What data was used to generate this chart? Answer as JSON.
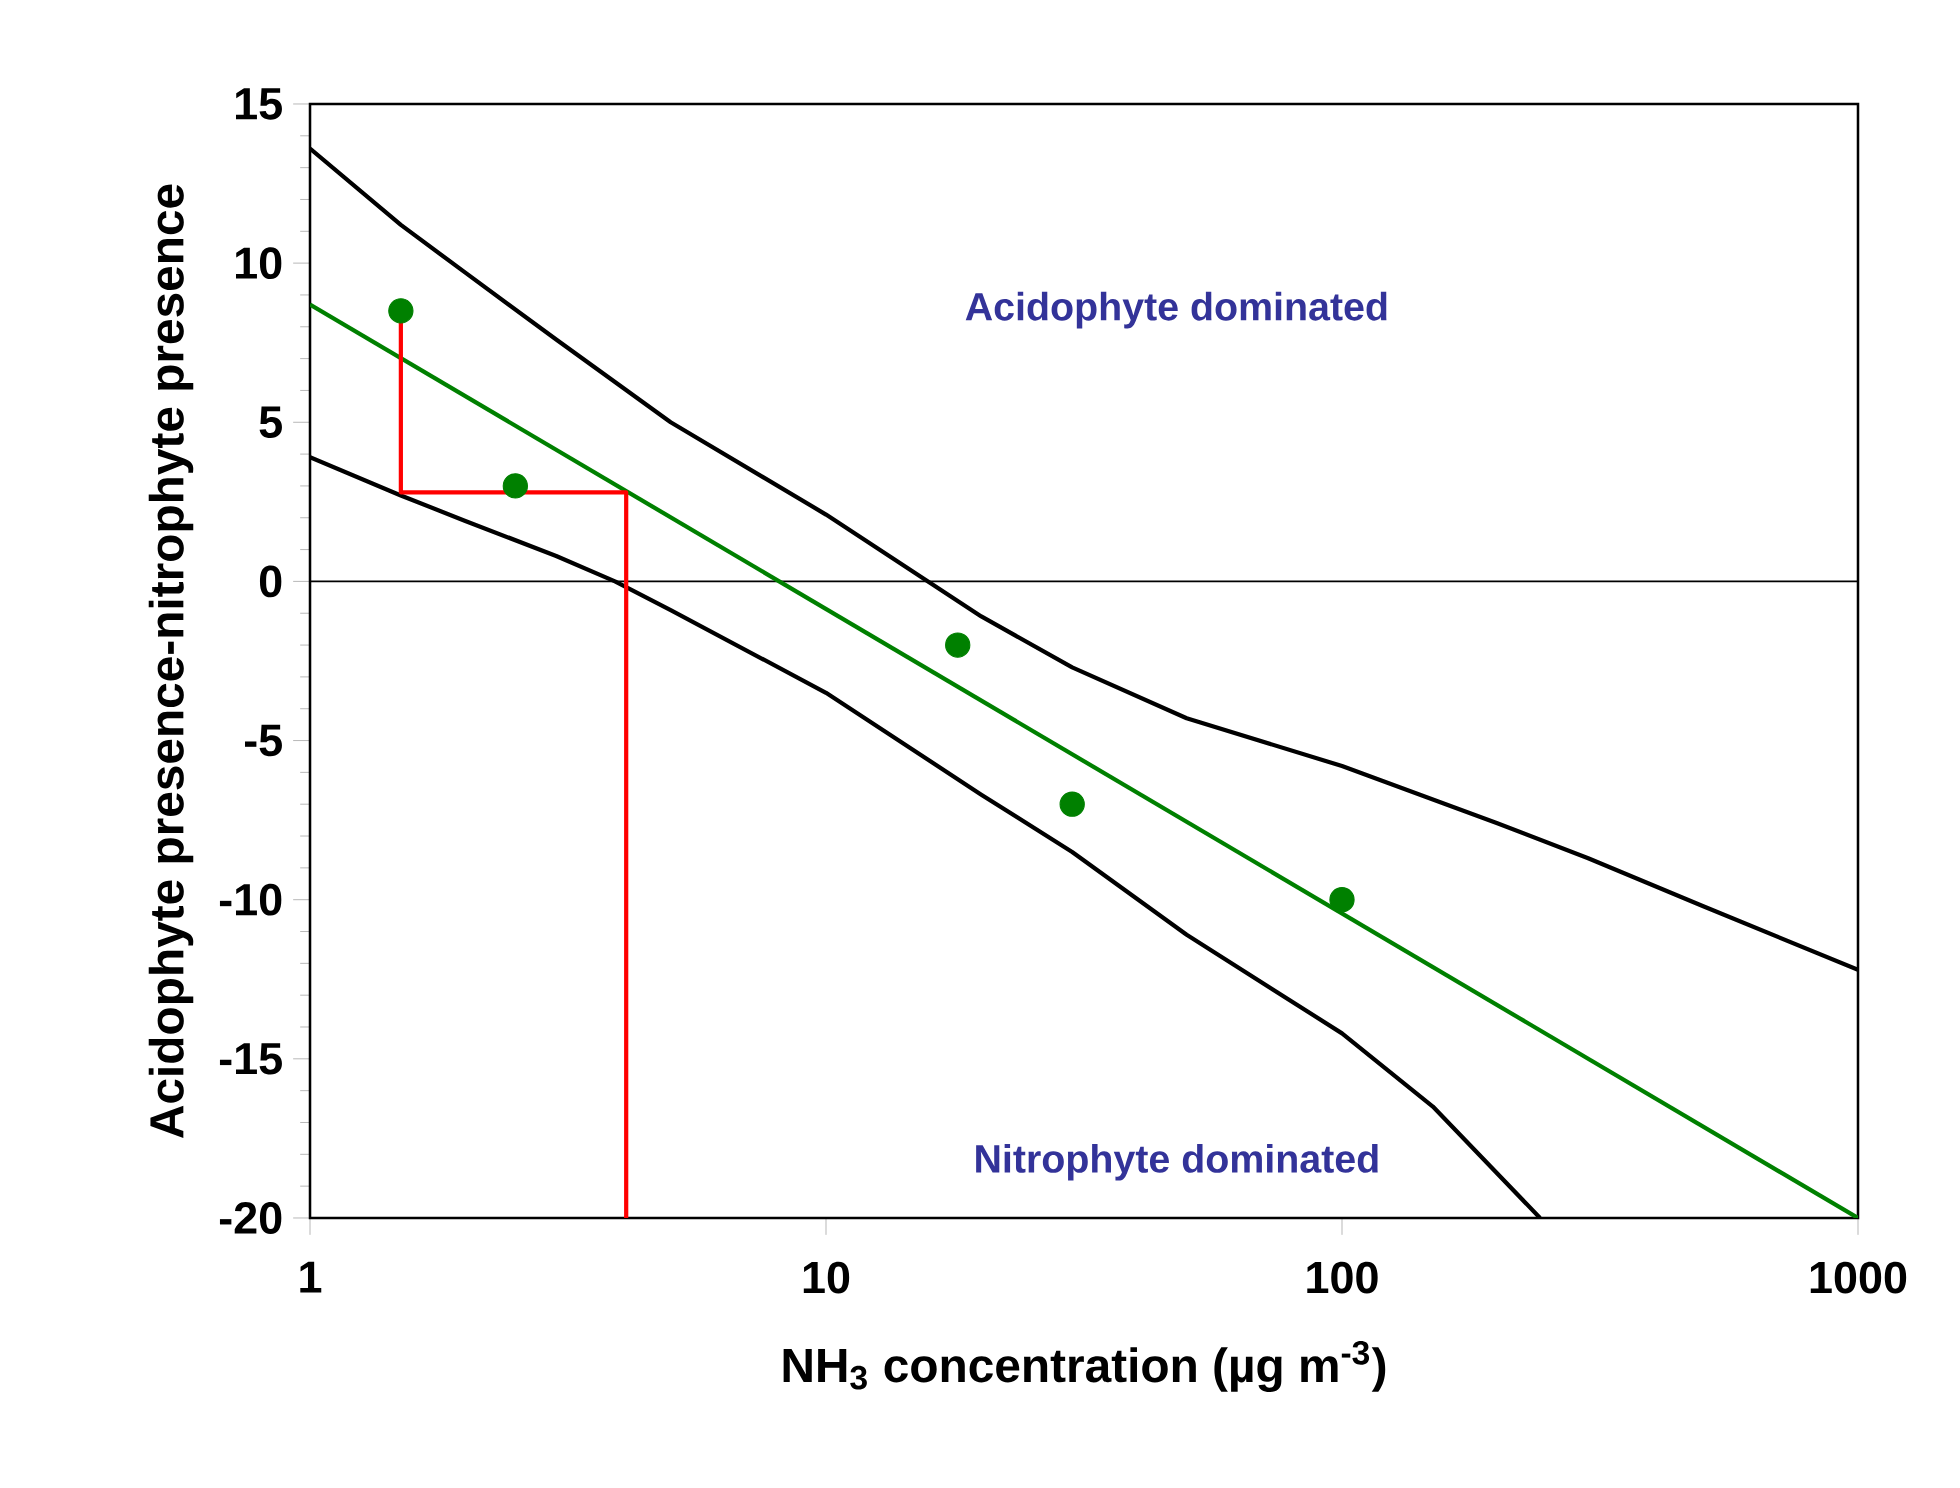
{
  "chart_data": {
    "type": "line",
    "xlabel": "NH$_{3}$ concentration (µg m$^{-3}$)",
    "ylabel": "Acidophyte presence-nitrophyte presence",
    "log": "x",
    "marker": "none",
    "xlim": [
      1,
      1000
    ],
    "ylim": [
      -20,
      15
    ],
    "xticks": [
      1,
      10,
      100,
      1000
    ],
    "yticks": [
      -20,
      -15,
      -10,
      -5,
      0,
      5,
      10,
      15
    ],
    "annotations": [
      "Acidophyte dominated",
      "Nitrophyte dominated"
    ],
    "ref_lines": [
      {
        "axis": "y",
        "value": 0,
        "color": "#000000"
      }
    ],
    "series": [
      {
        "color": "#000000",
        "x": [
          1,
          1.5,
          2,
          3,
          5,
          10,
          20,
          30,
          50,
          100,
          200,
          300,
          500,
          1000
        ],
        "values": [
          13.6,
          11.2,
          9.7,
          7.6,
          5,
          2.1,
          -1.1,
          -2.7,
          -4.3,
          -5.8,
          -7.6,
          -8.7,
          -10.2,
          -12.2
        ]
      },
      {
        "color": "#000000",
        "x": [
          1,
          1.5,
          2,
          3,
          3.9,
          5,
          10,
          20,
          30,
          50,
          100,
          150,
          242
        ],
        "values": [
          3.9,
          2.7,
          1.9,
          0.8,
          0,
          -0.9,
          -3.5,
          -6.7,
          -8.5,
          -11.1,
          -14.2,
          -16.5,
          -20
        ]
      },
      {
        "color": "#008000",
        "x": [
          1,
          1000
        ],
        "values": [
          8.7,
          -20
        ]
      },
      {
        "type": "scatter",
        "marker": "circle",
        "color": "#008000",
        "x": [
          1.5,
          2.5,
          18,
          30,
          100
        ],
        "values": [
          8.5,
          3,
          -2,
          -7,
          -10
        ]
      },
      {
        "color": "#ff0000",
        "x": [
          1.5,
          1.5,
          4.1,
          4.1
        ],
        "values": [
          8.5,
          2.8,
          2.8,
          -20
        ]
      }
    ]
  }
}
